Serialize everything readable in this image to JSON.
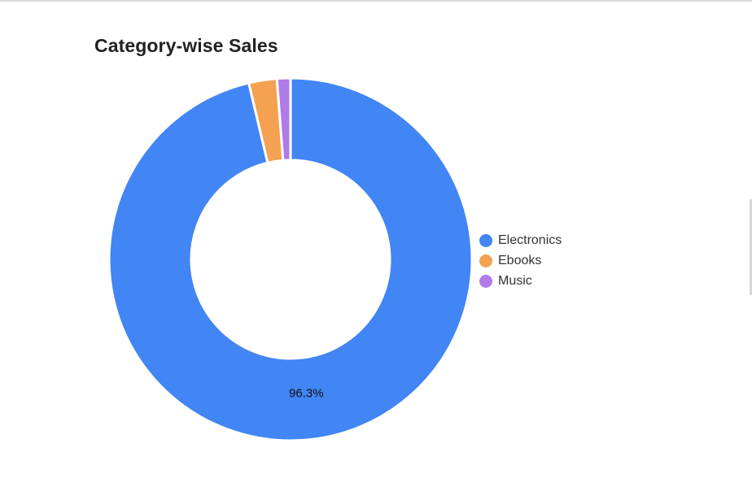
{
  "chart_data": {
    "type": "pie",
    "title": "Category-wise Sales",
    "donut": true,
    "categories": [
      "Electronics",
      "Ebooks",
      "Music"
    ],
    "values": [
      96.3,
      2.5,
      1.2
    ],
    "unit": "%",
    "colors": [
      "#4285f4",
      "#f4a152",
      "#b07be6"
    ],
    "data_labels": [
      "96.3%",
      "",
      ""
    ],
    "legend": "right",
    "start_angle": "top",
    "direction": "counter-clockwise"
  }
}
